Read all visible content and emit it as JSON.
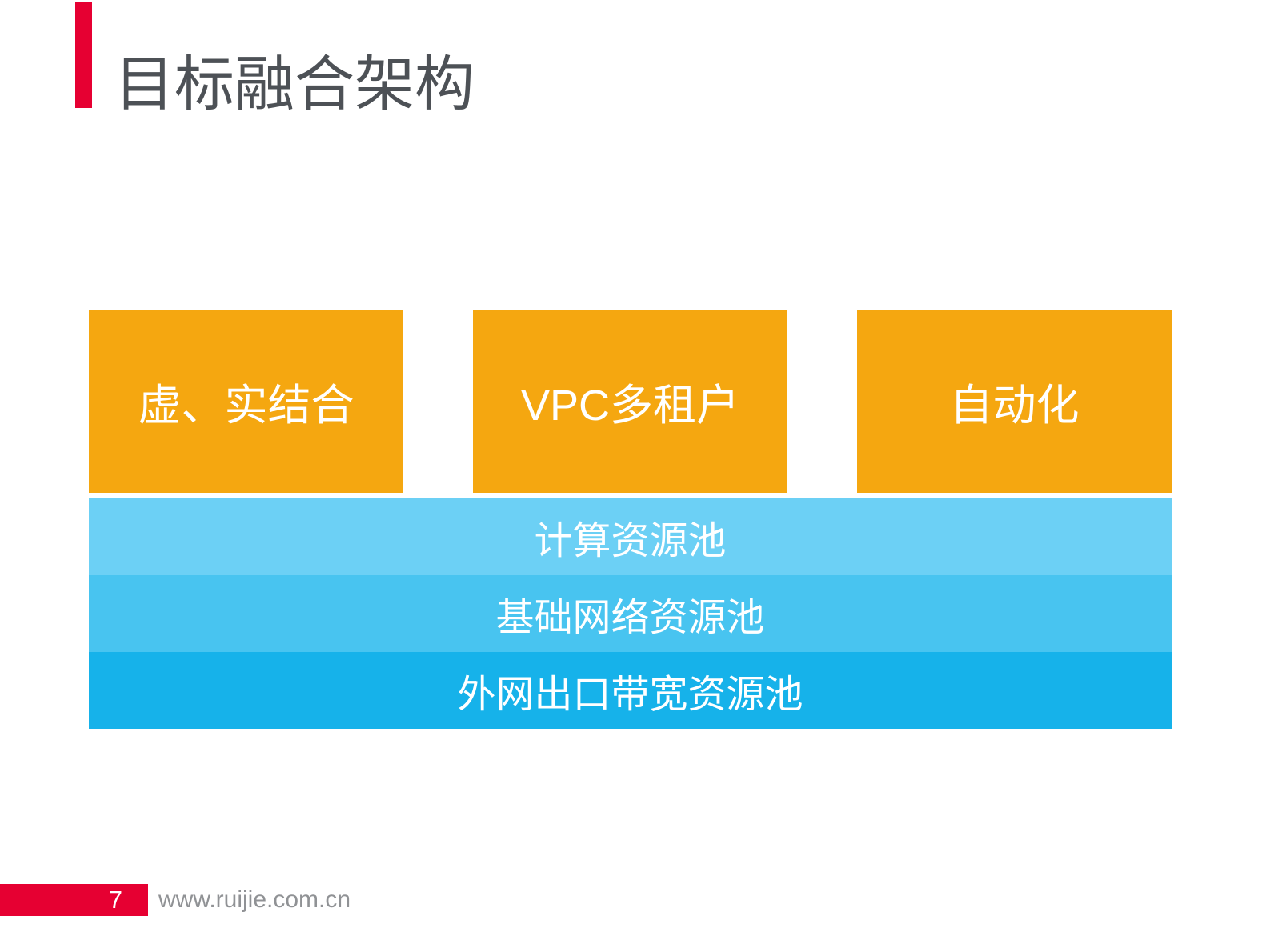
{
  "slide": {
    "title": "目标融合架构"
  },
  "pillars": [
    {
      "label": "虚、实结合"
    },
    {
      "label": "VPC多租户"
    },
    {
      "label": "自动化"
    }
  ],
  "layers": [
    {
      "label": "计算资源池",
      "color": "#6CD0F5"
    },
    {
      "label": "基础网络资源池",
      "color": "#48C4F0"
    },
    {
      "label": "外网出口带宽资源池",
      "color": "#16B2EA"
    }
  ],
  "footer": {
    "page_number": "7",
    "website": "www.ruijie.com.cn"
  },
  "colors": {
    "accent_red": "#E60032",
    "pillar_orange": "#F5A710",
    "title_gray": "#4D5156",
    "footer_text_gray": "#909295"
  }
}
